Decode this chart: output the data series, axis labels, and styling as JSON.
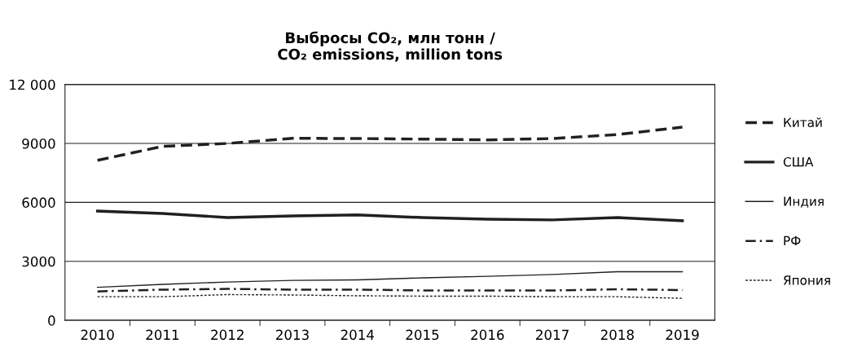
{
  "chart_data": {
    "type": "line",
    "title": "Выбросы CO₂, млн тонн /\nCO₂ emissions, million tons",
    "categories": [
      "2010",
      "2011",
      "2012",
      "2013",
      "2014",
      "2015",
      "2016",
      "2017",
      "2018",
      "2019"
    ],
    "series": [
      {
        "name": "Китай",
        "color": "#231f20",
        "line_style": "dashed",
        "values": [
          8140,
          8850,
          9000,
          9260,
          9250,
          9220,
          9180,
          9250,
          9450,
          9830
        ]
      },
      {
        "name": "США",
        "color": "#231f20",
        "line_style": "solid",
        "values": [
          5560,
          5440,
          5230,
          5310,
          5360,
          5230,
          5150,
          5110,
          5230,
          5070
        ]
      },
      {
        "name": "Индия",
        "color": "#231f20",
        "line_style": "solid",
        "values": [
          1680,
          1830,
          1950,
          2030,
          2060,
          2160,
          2240,
          2330,
          2470,
          2470
        ]
      },
      {
        "name": "РФ",
        "color": "#231f20",
        "line_style": "dashdot",
        "values": [
          1470,
          1560,
          1600,
          1560,
          1560,
          1520,
          1520,
          1520,
          1580,
          1540
        ]
      },
      {
        "name": "Япония",
        "color": "#231f20",
        "line_style": "dotted",
        "values": [
          1200,
          1200,
          1310,
          1290,
          1250,
          1230,
          1230,
          1200,
          1200,
          1120
        ]
      }
    ],
    "ylim": [
      0,
      12000
    ],
    "yticks": [
      0,
      3000,
      6000,
      9000,
      {
        "value": 12000,
        "label": "12 000"
      }
    ],
    "grid": "y",
    "legend": "right",
    "marker": "none"
  }
}
